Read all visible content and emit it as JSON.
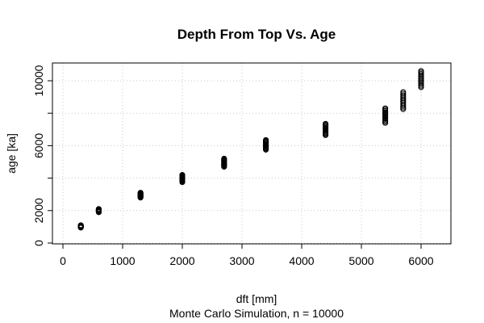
{
  "chart_data": {
    "type": "scatter",
    "title": "Depth From Top Vs. Age",
    "xlabel": "dft [mm]",
    "ylabel": "age [ka]",
    "subtitle": "Monte Carlo Simulation, n =  10000",
    "xlim": [
      0,
      6500
    ],
    "ylim": [
      0,
      11000
    ],
    "x_ticks": [
      0,
      1000,
      2000,
      3000,
      4000,
      5000,
      6000
    ],
    "y_ticks_labeled": [
      0,
      2000,
      6000,
      10000
    ],
    "y_ticks": [
      0,
      2000,
      4000,
      6000,
      8000,
      10000
    ],
    "grid": true,
    "clusters": [
      {
        "x": 300,
        "y_min": 950,
        "y_max": 1100
      },
      {
        "x": 600,
        "y_min": 1900,
        "y_max": 2100
      },
      {
        "x": 1300,
        "y_min": 2800,
        "y_max": 3100
      },
      {
        "x": 2000,
        "y_min": 3750,
        "y_max": 4200
      },
      {
        "x": 2700,
        "y_min": 4700,
        "y_max": 5200
      },
      {
        "x": 3400,
        "y_min": 5750,
        "y_max": 6350
      },
      {
        "x": 4400,
        "y_min": 6650,
        "y_max": 7350
      },
      {
        "x": 5400,
        "y_min": 7400,
        "y_max": 8300
      },
      {
        "x": 5700,
        "y_min": 8250,
        "y_max": 9300
      },
      {
        "x": 6000,
        "y_min": 9600,
        "y_max": 10600
      }
    ]
  }
}
